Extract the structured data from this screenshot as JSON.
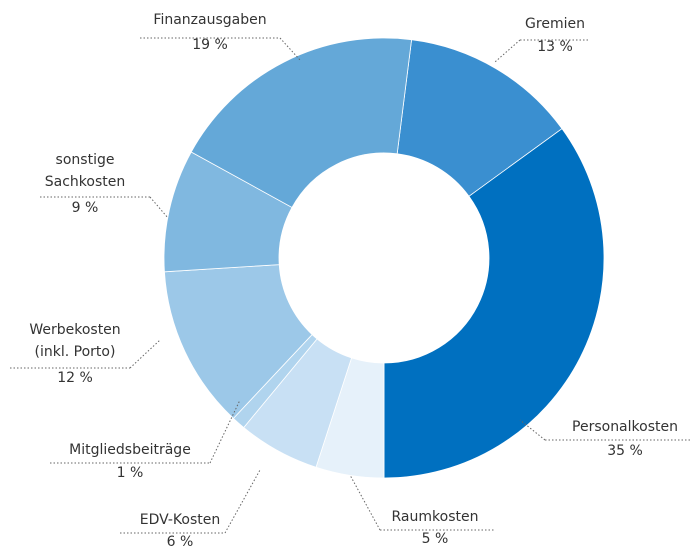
{
  "chart_data": {
    "type": "donut",
    "categories": [
      "Gremien",
      "Personalkosten",
      "Raumkosten",
      "EDV-Kosten",
      "Mitgliedsbeiträge",
      "Werbekosten (inkl. Porto)",
      "sonstige Sachkosten",
      "Finanzausgaben"
    ],
    "values": [
      13,
      35,
      5,
      6,
      1,
      12,
      9,
      19
    ],
    "value_labels": [
      "13 %",
      "35 %",
      "5 %",
      "6 %",
      "1 %",
      "12 %",
      "9 %",
      "19 %"
    ],
    "colors": [
      "#3a8fd0",
      "#0070c0",
      "#e6f1fa",
      "#c8e0f4",
      "#b0d4ee",
      "#9cc8e8",
      "#80b8e0",
      "#64a8d8"
    ]
  }
}
